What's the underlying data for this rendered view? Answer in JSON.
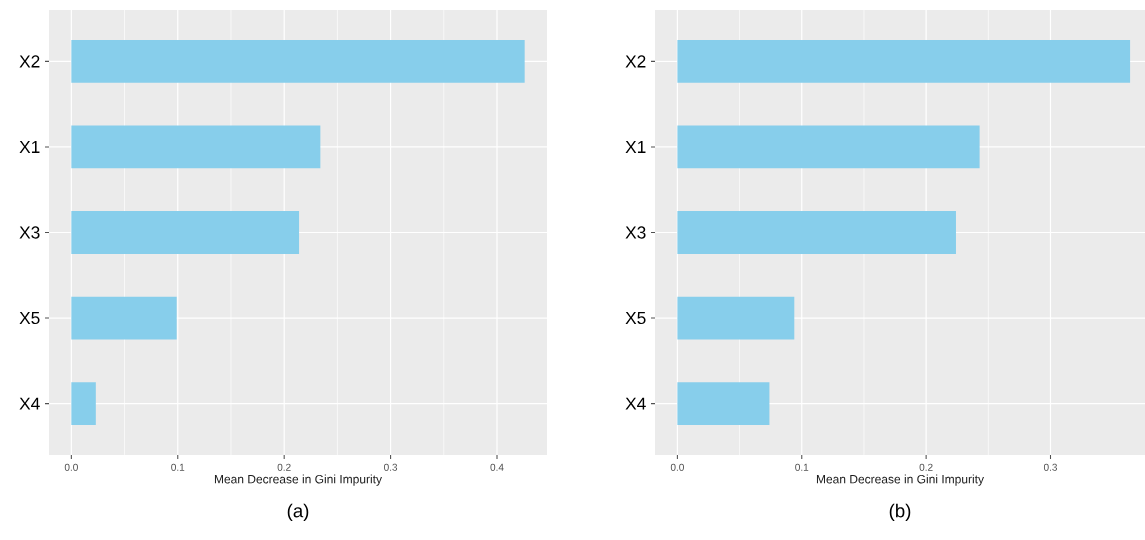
{
  "chart_data": [
    {
      "type": "bar",
      "orientation": "horizontal",
      "title": "(a)",
      "xlabel": "Mean Decrease in Gini Impurity",
      "categories": [
        "X2",
        "X1",
        "X3",
        "X5",
        "X4"
      ],
      "values": [
        0.426,
        0.234,
        0.214,
        0.099,
        0.023
      ],
      "color": "#87ceeb",
      "xlim": [
        -0.021,
        0.447
      ],
      "xticks": [
        {
          "value": 0,
          "label": "0.0"
        },
        0.1,
        0.2,
        0.3,
        0.4
      ],
      "grid": true
    },
    {
      "type": "bar",
      "orientation": "horizontal",
      "title": "(b)",
      "xlabel": "Mean Decrease in Gini Impurity",
      "categories": [
        "X2",
        "X1",
        "X3",
        "X5",
        "X4"
      ],
      "values": [
        0.364,
        0.243,
        0.224,
        0.094,
        0.074
      ],
      "color": "#87ceeb",
      "xlim": [
        -0.018,
        0.376
      ],
      "xticks": [
        {
          "value": 0,
          "label": "0.0"
        },
        0.1,
        0.2,
        0.3
      ],
      "grid": true
    }
  ]
}
